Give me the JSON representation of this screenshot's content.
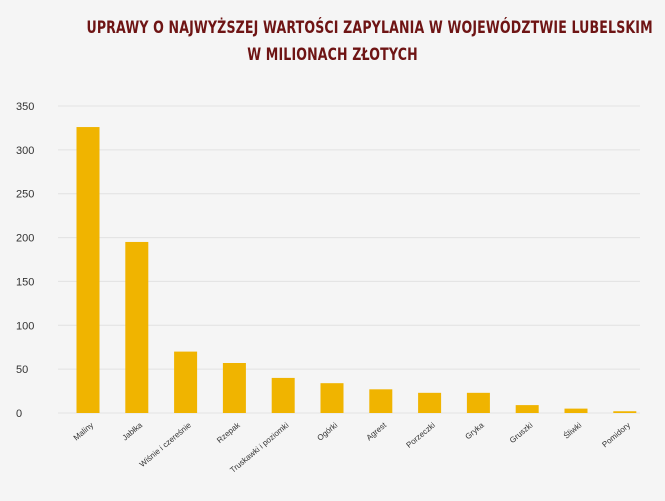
{
  "title_line1": "UPRAWY O NAJWYŻSZEJ WARTOŚCI ZAPYLANIA W WOJEWÓDZTWIE LUBELSKIM",
  "title_line2": "W MILIONACH ZŁOTYCH",
  "colors": {
    "bar": "#f0b400",
    "title": "#6e1414",
    "background": "#f5f5f5",
    "grid": "#e2e2e2"
  },
  "chart_data": {
    "type": "bar",
    "title": "UPRAWY O NAJWYŻSZEJ WARTOŚCI ZAPYLANIA W WOJEWÓDZTWIE LUBELSKIM W MILIONACH ZŁOTYCH",
    "categories": [
      "Maliny",
      "Jabłka",
      "Wiśnie i czereśnie",
      "Rzepak",
      "Truskawki i poziomki",
      "Ogórki",
      "Agrest",
      "Porzeczki",
      "Gryka",
      "Gruszki",
      "Śliwki",
      "Pomidory"
    ],
    "values": [
      326,
      195,
      70,
      57,
      40,
      34,
      27,
      23,
      23,
      9,
      5,
      2
    ],
    "ylim": [
      0,
      350
    ],
    "yticks": [
      "0",
      "50",
      "100",
      "150",
      "200",
      "250",
      "300",
      "350"
    ],
    "grid": true,
    "legend": "none",
    "xlabel": "",
    "ylabel": ""
  }
}
